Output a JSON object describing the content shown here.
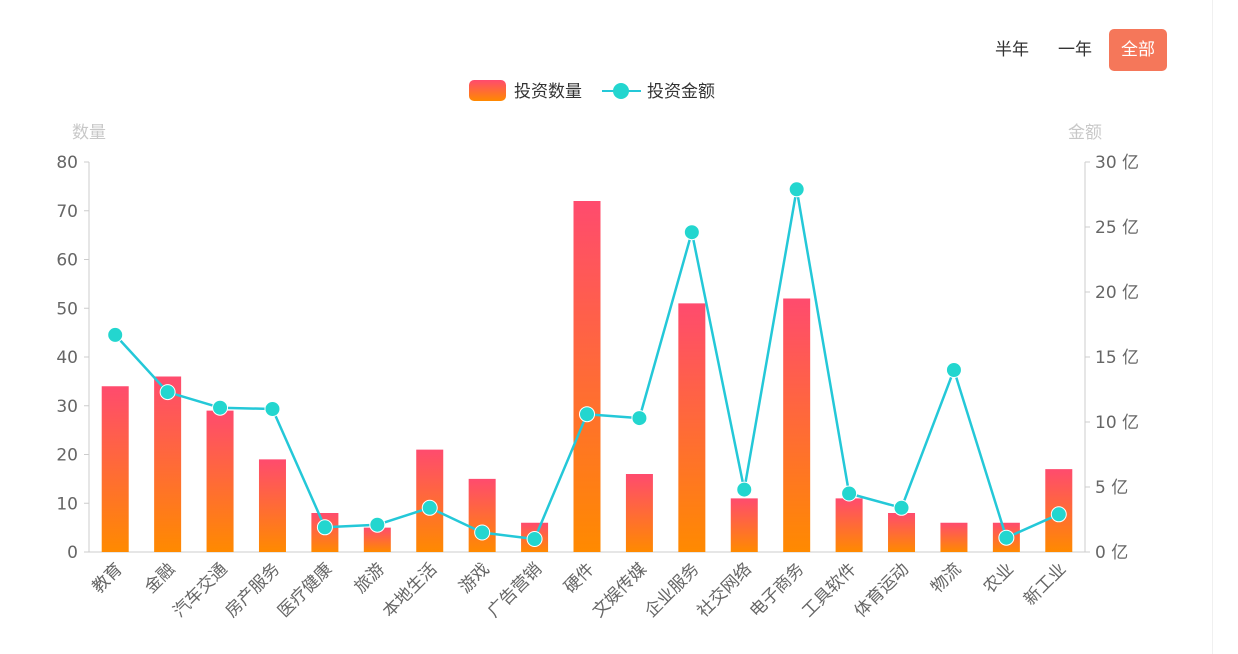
{
  "period_tabs": [
    {
      "label": "半年",
      "active": false
    },
    {
      "label": "一年",
      "active": false
    },
    {
      "label": "全部",
      "active": true
    }
  ],
  "colors": {
    "bar_top": "#ff4b6e",
    "bar_bottom": "#ff8a00",
    "line": "#24c8d8",
    "point": "#23d6cf",
    "active_tab": "#f5775a"
  },
  "chart_data": {
    "type": "bar+line",
    "categories": [
      "教育",
      "金融",
      "汽车交通",
      "房产服务",
      "医疗健康",
      "旅游",
      "本地生活",
      "游戏",
      "广告营销",
      "硬件",
      "文娱传媒",
      "企业服务",
      "社交网络",
      "电子商务",
      "工具软件",
      "体育运动",
      "物流",
      "农业",
      "新工业"
    ],
    "series": [
      {
        "name": "投资数量",
        "type": "bar",
        "axis": "left",
        "values": [
          34,
          36,
          29,
          19,
          8,
          5,
          21,
          15,
          6,
          72,
          16,
          51,
          11,
          52,
          11,
          8,
          6,
          6,
          17
        ]
      },
      {
        "name": "投资金额",
        "type": "line",
        "axis": "right",
        "values": [
          16.7,
          12.3,
          11.1,
          11.0,
          1.9,
          2.1,
          3.4,
          1.5,
          1.0,
          10.6,
          10.3,
          24.6,
          4.8,
          27.9,
          4.5,
          3.4,
          14.0,
          1.1,
          2.9
        ]
      }
    ],
    "left_axis": {
      "name": "数量",
      "min": 0,
      "max": 80,
      "ticks": [
        "0",
        "10",
        "20",
        "30",
        "40",
        "50",
        "60",
        "70",
        "80"
      ]
    },
    "right_axis": {
      "name": "金额",
      "min": 0,
      "max": 30,
      "ticks": [
        "0 亿",
        "5 亿",
        "10 亿",
        "15 亿",
        "20 亿",
        "25 亿",
        "30 亿"
      ]
    },
    "legend": [
      "投资数量",
      "投资金额"
    ],
    "legend_position": "top-center"
  }
}
